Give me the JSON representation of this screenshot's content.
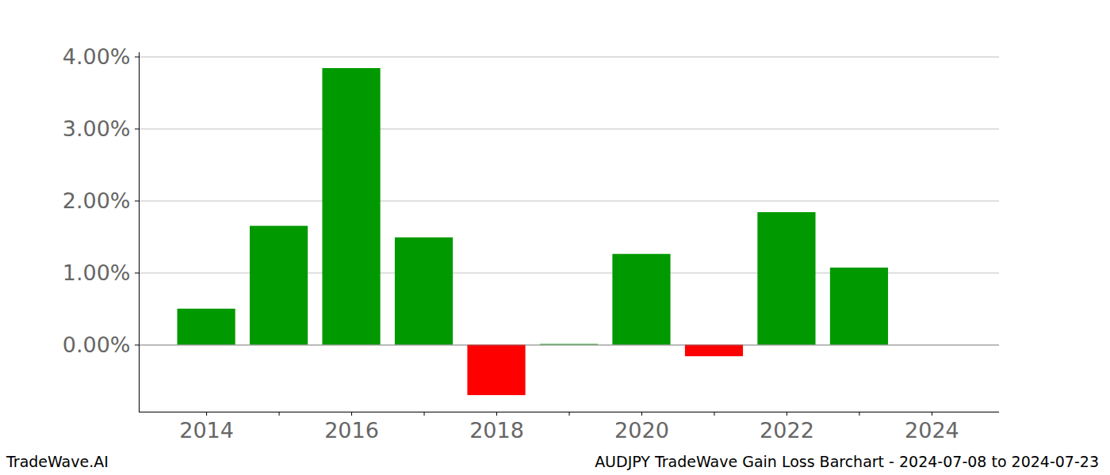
{
  "chart_data": {
    "type": "bar",
    "title": "AUDJPY TradeWave Gain Loss Barchart - 2024-07-08 to 2024-07-23",
    "source": "TradeWave.AI",
    "x": [
      2014,
      2015,
      2016,
      2017,
      2018,
      2019,
      2020,
      2021,
      2022,
      2023
    ],
    "values": [
      0.5,
      1.65,
      3.84,
      1.49,
      -0.7,
      0.01,
      1.26,
      -0.16,
      1.84,
      1.07
    ],
    "colors": [
      "#009900",
      "#009900",
      "#009900",
      "#009900",
      "#ff0000",
      "#009900",
      "#009900",
      "#ff0000",
      "#009900",
      "#009900"
    ],
    "xlim": [
      2013.07,
      2024.93
    ],
    "xticks": [
      2014,
      2016,
      2018,
      2020,
      2022,
      2024
    ],
    "ylim": [
      -0.93,
      4.06
    ],
    "yticks": [
      {
        "value": 0,
        "label": "0.00%"
      },
      {
        "value": 1,
        "label": "1.00%"
      },
      {
        "value": 2,
        "label": "2.00%"
      },
      {
        "value": 3,
        "label": "3.00%"
      },
      {
        "value": 4,
        "label": "4.00%"
      }
    ],
    "grid": true
  }
}
